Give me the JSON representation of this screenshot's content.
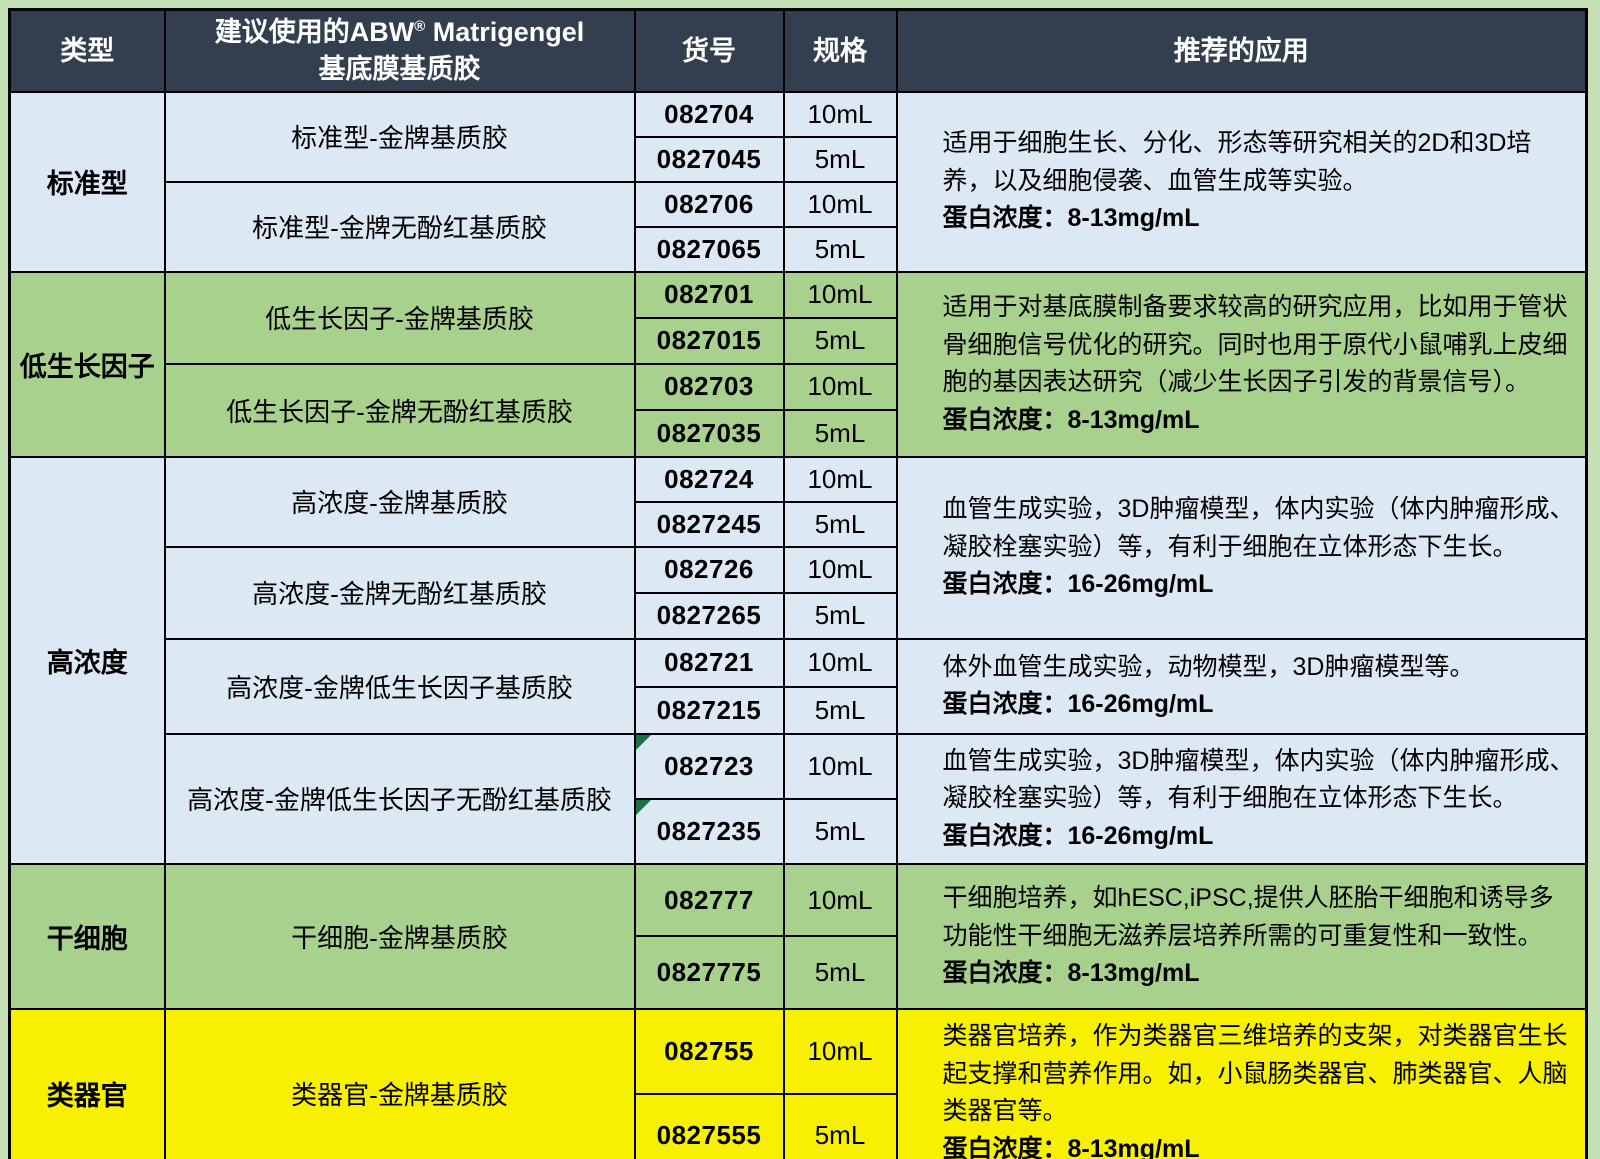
{
  "colors": {
    "sheet_background": "#C5E0B4",
    "header_background": "#333F4F",
    "header_text": "#FFFFFF",
    "group_blue": "#DCE9F5",
    "group_green": "#A9D18E",
    "group_yellow": "#F7F000",
    "border": "#000000",
    "comment_flag_green": "#1E7145"
  },
  "header": {
    "type": "类型",
    "product_line1_pre": "建议使用的ABW",
    "reg": "®",
    "product_line1_post": " Matrigengel",
    "product_line2": "基底膜基质胶",
    "catalog": "货号",
    "spec": "规格",
    "application": "推荐的应用"
  },
  "groups": [
    {
      "type": "标准型",
      "color": "#DCE9F5",
      "products": [
        {
          "name": "标准型-金牌基质胶",
          "skus": [
            {
              "code": "082704",
              "spec": "10mL"
            },
            {
              "code": "0827045",
              "spec": "5mL"
            }
          ]
        },
        {
          "name": "标准型-金牌无酚红基质胶",
          "skus": [
            {
              "code": "082706",
              "spec": "10mL"
            },
            {
              "code": "0827065",
              "spec": "5mL"
            }
          ]
        }
      ],
      "apps": [
        {
          "text": "适用于细胞生长、分化、形态等研究相关的2D和3D培养，以及细胞侵袭、血管生成等实验。",
          "protein": "蛋白浓度：8-13mg/mL"
        }
      ]
    },
    {
      "type": "低生长因子",
      "color": "#A9D18E",
      "products": [
        {
          "name": "低生长因子-金牌基质胶",
          "skus": [
            {
              "code": "082701",
              "spec": "10mL"
            },
            {
              "code": "0827015",
              "spec": "5mL"
            }
          ]
        },
        {
          "name": "低生长因子-金牌无酚红基质胶",
          "skus": [
            {
              "code": "082703",
              "spec": "10mL"
            },
            {
              "code": "0827035",
              "spec": "5mL"
            }
          ]
        }
      ],
      "apps": [
        {
          "text": "适用于对基底膜制备要求较高的研究应用，比如用于管状骨细胞信号优化的研究。同时也用于原代小鼠哺乳上皮细胞的基因表达研究（减少生长因子引发的背景信号）。",
          "protein": "蛋白浓度：8-13mg/mL"
        }
      ]
    },
    {
      "type": "高浓度",
      "color": "#DCE9F5",
      "products": [
        {
          "name": "高浓度-金牌基质胶",
          "skus": [
            {
              "code": "082724",
              "spec": "10mL"
            },
            {
              "code": "0827245",
              "spec": "5mL"
            }
          ]
        },
        {
          "name": "高浓度-金牌无酚红基质胶",
          "skus": [
            {
              "code": "082726",
              "spec": "10mL"
            },
            {
              "code": "0827265",
              "spec": "5mL"
            }
          ]
        },
        {
          "name": "高浓度-金牌低生长因子基质胶",
          "skus": [
            {
              "code": "082721",
              "spec": "10mL"
            },
            {
              "code": "0827215",
              "spec": "5mL"
            }
          ]
        },
        {
          "name": "高浓度-金牌低生长因子无酚红基质胶",
          "skus": [
            {
              "code": "082723",
              "spec": "10mL",
              "comment_flag": true
            },
            {
              "code": "0827235",
              "spec": "5mL",
              "comment_flag": true
            }
          ]
        }
      ],
      "apps": [
        {
          "text": "血管生成实验，3D肿瘤模型，体内实验（体内肿瘤形成、凝胶栓塞实验）等，有利于细胞在立体形态下生长。",
          "protein": "蛋白浓度：16-26mg/mL"
        },
        {
          "text": "体外血管生成实验，动物模型，3D肿瘤模型等。",
          "protein": "蛋白浓度：16-26mg/mL"
        },
        {
          "text": "血管生成实验，3D肿瘤模型，体内实验（体内肿瘤形成、凝胶栓塞实验）等，有利于细胞在立体形态下生长。",
          "protein": "蛋白浓度：16-26mg/mL"
        }
      ]
    },
    {
      "type": "干细胞",
      "color": "#A9D18E",
      "products": [
        {
          "name": "干细胞-金牌基质胶",
          "skus": [
            {
              "code": "082777",
              "spec": "10mL"
            },
            {
              "code": "0827775",
              "spec": "5mL"
            }
          ]
        }
      ],
      "apps": [
        {
          "text": "干细胞培养，如hESC,iPSC,提供人胚胎干细胞和诱导多功能性干细胞无滋养层培养所需的可重复性和一致性。",
          "protein": "蛋白浓度：8-13mg/mL"
        }
      ]
    },
    {
      "type": "类器官",
      "color": "#F7F000",
      "products": [
        {
          "name": "类器官-金牌基质胶",
          "skus": [
            {
              "code": "082755",
              "spec": "10mL"
            },
            {
              "code": "0827555",
              "spec": "5mL"
            }
          ]
        }
      ],
      "apps": [
        {
          "text": "类器官培养，作为类器官三维培养的支架，对类器官生长起支撑和营养作用。如，小鼠肠类器官、肺类器官、人脑类器官等。",
          "protein": "蛋白浓度：8-13mg/mL"
        }
      ]
    }
  ]
}
